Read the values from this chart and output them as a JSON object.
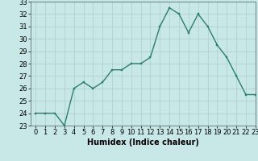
{
  "x": [
    0,
    1,
    2,
    3,
    4,
    5,
    6,
    7,
    8,
    9,
    10,
    11,
    12,
    13,
    14,
    15,
    16,
    17,
    18,
    19,
    20,
    21,
    22,
    23
  ],
  "y": [
    24,
    24,
    24,
    23,
    26,
    26.5,
    26,
    26.5,
    27.5,
    27.5,
    28,
    28,
    28.5,
    31,
    32.5,
    32,
    30.5,
    32,
    31,
    29.5,
    28.5,
    27,
    25.5,
    25.5
  ],
  "line_color": "#2e7d6e",
  "marker_color": "#2e7d6e",
  "bg_color": "#c8e8e8",
  "grid_color": "#a8cece",
  "xlabel": "Humidex (Indice chaleur)",
  "ylim": [
    23,
    33
  ],
  "xlim": [
    -0.5,
    23
  ],
  "yticks": [
    23,
    24,
    25,
    26,
    27,
    28,
    29,
    30,
    31,
    32,
    33
  ],
  "xticks": [
    0,
    1,
    2,
    3,
    4,
    5,
    6,
    7,
    8,
    9,
    10,
    11,
    12,
    13,
    14,
    15,
    16,
    17,
    18,
    19,
    20,
    21,
    22,
    23
  ],
  "xlabel_fontsize": 7,
  "tick_fontsize": 6,
  "linewidth": 1.0,
  "markersize": 2.0
}
